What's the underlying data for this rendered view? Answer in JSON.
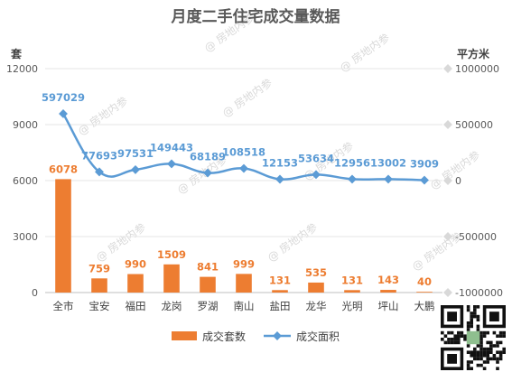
{
  "chart_data": {
    "type": "bar",
    "title": "月度二手住宅成交量数据",
    "categories": [
      "全市",
      "宝安",
      "福田",
      "龙岗",
      "罗湖",
      "南山",
      "盐田",
      "龙华",
      "光明",
      "坪山",
      "大鹏"
    ],
    "series": [
      {
        "name": "成交套数",
        "type": "bar",
        "axis": "left",
        "color": "#ED7D31",
        "values": [
          6078,
          759,
          990,
          1509,
          841,
          999,
          131,
          535,
          131,
          143,
          40
        ],
        "labels": [
          "6078",
          "759",
          "990",
          "1509",
          "841",
          "999",
          "131",
          "535",
          "131",
          "143",
          "40"
        ]
      },
      {
        "name": "成交面积",
        "type": "line",
        "axis": "right",
        "color": "#5B9BD5",
        "values": [
          597029,
          77693,
          97531,
          149443,
          68189,
          108518,
          12153,
          53634,
          12956,
          13002,
          3909
        ],
        "labels": [
          "597029",
          "77693",
          "97531",
          "149443",
          "68189",
          "108518",
          "12153",
          "53634",
          "12956",
          "13002",
          "3909"
        ]
      }
    ],
    "y_left": {
      "label": "套",
      "range": [
        0,
        12000
      ],
      "ticks": [
        0,
        3000,
        6000,
        9000,
        12000
      ],
      "tick_labels": [
        "0",
        "3000",
        "6000",
        "9000",
        "12000"
      ]
    },
    "y_right": {
      "label": "平方米",
      "range": [
        -1000000,
        1000000
      ],
      "ticks": [
        -1000000,
        -500000,
        0,
        500000,
        1000000
      ],
      "tick_labels": [
        "-1000000",
        "-500000",
        "0",
        "500000",
        "1000000"
      ]
    },
    "grid": true,
    "legend": "bottom",
    "watermark": "房地内参"
  }
}
